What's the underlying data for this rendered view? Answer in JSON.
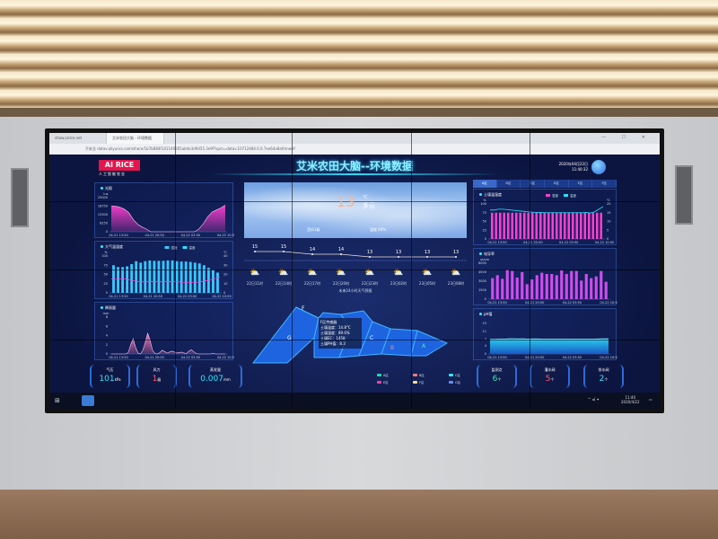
{
  "browser": {
    "tabs": [
      "show.airice.net",
      "艾米农田大脑 - 环境数据"
    ],
    "url": "datav.aliyuncs.com/share/1b7b884f141149265ab4e3d9455.3e9f?spm=datav.10712484.0.0.7ee64a8afmnwef",
    "security_label": "不安全"
  },
  "header": {
    "logo": "AI RICE",
    "logo_sub": "人工智能农业",
    "title": "艾米农田大脑--环境数据",
    "date": "2020年04月22日",
    "time": "11:40:32"
  },
  "colors": {
    "accent": "#2be0ff",
    "magenta": "#ff3fd0",
    "bar_cyan": "#38c8ff",
    "alert_red": "#ff5a6a",
    "green": "#3fe8a8"
  },
  "weather": {
    "temp": "13",
    "unit": "℃",
    "desc": "多云",
    "wind": "西风1级",
    "humidity": "湿度 84%"
  },
  "forecast": {
    "caption": "未来24小时天气预报",
    "icon": "partly-cloudy-icon",
    "items": [
      {
        "time": "22日11时",
        "temp": 15
      },
      {
        "time": "22日14时",
        "temp": 15
      },
      {
        "time": "22日17时",
        "temp": 14
      },
      {
        "time": "22日20时",
        "temp": 14
      },
      {
        "time": "22日23时",
        "temp": 13
      },
      {
        "time": "23日02时",
        "temp": 13
      },
      {
        "time": "23日05时",
        "temp": 13
      },
      {
        "time": "23日08时",
        "temp": 13
      }
    ]
  },
  "map": {
    "zones": [
      "A",
      "B",
      "C",
      "F",
      "G"
    ],
    "tooltip": [
      "F区传感器",
      "土壤温度：14.8°C",
      "土壤湿度：89.6%",
      "土壤EC：1458",
      "土壤PH值：8.3"
    ],
    "legend": [
      {
        "label": "A区",
        "color": "#19e0a8"
      },
      {
        "label": "B区",
        "color": "#ff7a7a"
      },
      {
        "label": "C区",
        "color": "#2ee8ff"
      },
      {
        "label": "E区",
        "color": "#ff3fa8"
      },
      {
        "label": "F区",
        "color": "#ffe08a"
      },
      {
        "label": "G区",
        "color": "#6a8cff"
      }
    ]
  },
  "left_stats": [
    {
      "label": "气压",
      "value": "101",
      "unit": "kPa",
      "color": "#2ee8ff"
    },
    {
      "label": "风力",
      "value": "1",
      "unit": "级",
      "color": "#ff5a6a"
    },
    {
      "label": "蒸发量",
      "value": "0.007",
      "unit": "mm",
      "color": "#2ee8ff"
    }
  ],
  "right_stats": [
    {
      "label": "监测点",
      "value": "6",
      "unit": "个",
      "color": "#3fe8a8"
    },
    {
      "label": "灌水阀",
      "value": "5",
      "unit": "个",
      "color": "#ff5a6a"
    },
    {
      "label": "排水阀",
      "value": "2",
      "unit": "个",
      "color": "#2ee8ff"
    }
  ],
  "zone_tabs": [
    "A区",
    "B区",
    "C区",
    "D区",
    "E区",
    "F区"
  ],
  "taskbar": {
    "time": "11:40",
    "date": "2020/4/22"
  },
  "chart_data": [
    {
      "id": "light",
      "title": "光照",
      "type": "area",
      "ylabel": "lux",
      "ylim": [
        0,
        25000
      ],
      "yticks": [
        0,
        6250,
        12500,
        18750,
        25000
      ],
      "xticks": [
        "04-21 13:50",
        "04-21 20:50",
        "04-22 03:50",
        "04-22 10:50"
      ],
      "values": [
        19000,
        18700,
        18000,
        16500,
        14000,
        9000,
        5500,
        3500,
        2000,
        0,
        0,
        0,
        0,
        0,
        0,
        0,
        0,
        0,
        0,
        0,
        2000,
        6000,
        11000,
        14500,
        16000,
        17500,
        19500
      ]
    },
    {
      "id": "air",
      "title": "大气温湿度",
      "type": "bar+line",
      "legend": [
        "湿度",
        "温度"
      ],
      "ylabel": "%",
      "y2label": "℃",
      "ylim": [
        0,
        100
      ],
      "y2lim": [
        0,
        40
      ],
      "yticks": [
        0,
        25,
        50,
        75,
        100
      ],
      "y2ticks": [
        0,
        10,
        20,
        30,
        40
      ],
      "xticks": [
        "04-21 13:50",
        "04-21 20:50",
        "04-22 03:50",
        "04-22 10:50"
      ],
      "bars": [
        75,
        70,
        70,
        72,
        78,
        86,
        82,
        86,
        88,
        87,
        87,
        87,
        88,
        88,
        86,
        85,
        85,
        84,
        82,
        80,
        75,
        68,
        62,
        55
      ],
      "line": [
        15,
        15,
        15,
        15,
        14,
        13,
        12,
        12,
        12,
        12,
        12,
        12,
        12,
        12,
        12,
        11.5,
        11.5,
        11.5,
        11.5,
        12,
        13,
        14,
        15.5,
        17
      ]
    },
    {
      "id": "rain",
      "title": "降雨量",
      "type": "area",
      "ylabel": "mm",
      "ylim": [
        0,
        8
      ],
      "yticks": [
        0,
        2,
        4,
        6,
        8
      ],
      "xticks": [
        "04-21 13:50",
        "04-21 20:50",
        "04-22 03:50",
        "04-22 10:50"
      ],
      "values": [
        0,
        0,
        0,
        0,
        0,
        0,
        0,
        0.3,
        2,
        3.3,
        1.5,
        0.2,
        0,
        0.8,
        2.5,
        4.5,
        3,
        0.8,
        0.1,
        0,
        0.3,
        0.8,
        0.5,
        0.2,
        0.4,
        0.6,
        0.4,
        0.2,
        0.3,
        0.4,
        0.2,
        0.1,
        0.6,
        0.9,
        0.5,
        0.1,
        0,
        0,
        0,
        0,
        0,
        0,
        0.1,
        0,
        0,
        0,
        0,
        0
      ]
    },
    {
      "id": "soil",
      "title": "土壤温湿度",
      "type": "bar+line",
      "legend": [
        "湿度",
        "温度"
      ],
      "ylabel": "%",
      "y2label": "℃",
      "ylim": [
        0,
        100
      ],
      "y2lim": [
        0,
        20
      ],
      "yticks": [
        0,
        25,
        50,
        75,
        100
      ],
      "y2ticks": [
        0,
        5,
        10,
        15,
        20
      ],
      "xticks": [
        "04-21 13:50",
        "04-21 20:50",
        "04-22 03:50",
        "04-22 10:50"
      ],
      "bars": [
        75,
        75,
        75,
        75,
        75,
        75,
        75,
        75,
        75,
        75,
        75,
        75,
        75,
        75,
        75,
        75,
        75,
        75,
        75,
        75,
        75,
        75,
        75,
        75,
        75,
        75,
        75,
        75
      ],
      "line": [
        16.5,
        16.5,
        17,
        17,
        16.8,
        16.5,
        16.3,
        16,
        15.8,
        15.5,
        15.3,
        15.2,
        15.1,
        15,
        15,
        15,
        15,
        15,
        15,
        15,
        15,
        15,
        15,
        15.1,
        14.8,
        15.5,
        17,
        18.5
      ]
    },
    {
      "id": "ec",
      "title": "电导率",
      "type": "bar",
      "ylabel": "us/cm",
      "ylim": [
        0,
        6000
      ],
      "yticks": [
        0,
        1500,
        3000,
        4500,
        6000
      ],
      "xticks": [
        "04-21 13:50",
        "04-21 20:50",
        "04-22 03:50",
        "04-22 10:50"
      ],
      "values": [
        3500,
        4000,
        3400,
        4900,
        4700,
        3600,
        4500,
        2500,
        3300,
        4000,
        4400,
        4200,
        4200,
        4000,
        4800,
        4200,
        4700,
        4700,
        3100,
        4200,
        3500,
        3800,
        4700,
        2900
      ]
    },
    {
      "id": "ph",
      "title": "pH值",
      "type": "area",
      "ylim": [
        0,
        15
      ],
      "yticks": [
        0,
        4,
        7,
        11,
        15
      ],
      "xticks": [
        "04-21 13:50",
        "04-21 20:50",
        "04-22 03:50",
        "04-22 10:50"
      ],
      "values": [
        7.2,
        7.2,
        7.3,
        7.3,
        7.5,
        7.5,
        7.4,
        7.5,
        7.3,
        7.4,
        7.4,
        7.3,
        7.3,
        7.3,
        7.3,
        7.3,
        7.3,
        7.3,
        7.3,
        7.3,
        7.3,
        7.3,
        7.3,
        7.4,
        7.5,
        7.5
      ]
    }
  ]
}
